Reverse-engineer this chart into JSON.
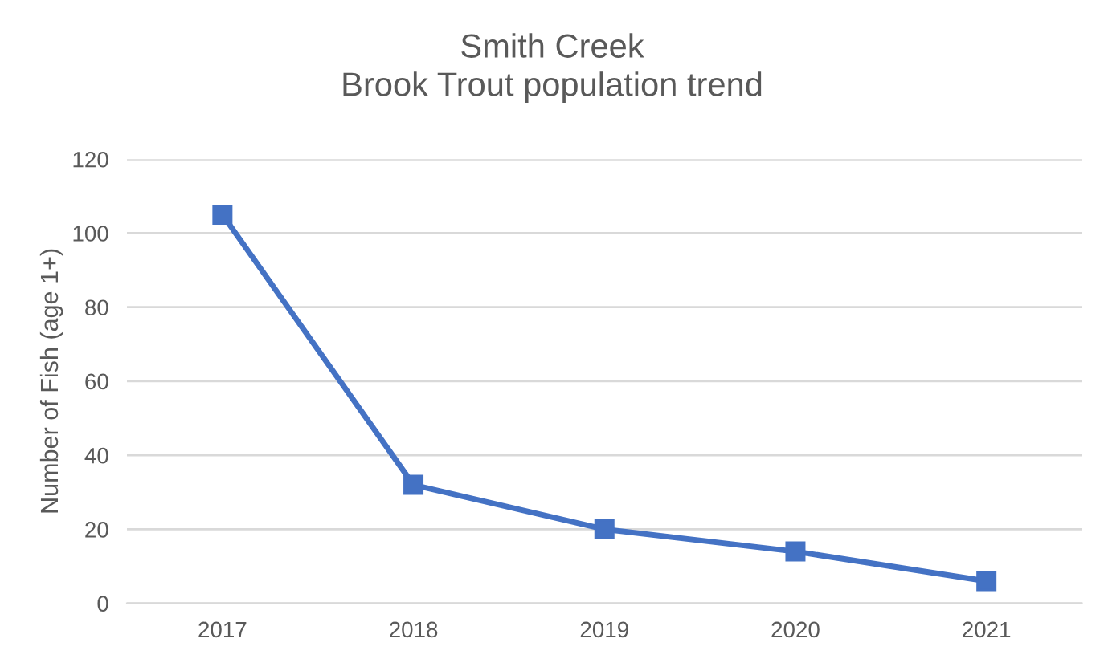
{
  "chart_data": {
    "type": "line",
    "title": "Smith Creek\nBrook Trout population trend",
    "ylabel": "Number of Fish (age 1+)",
    "categories": [
      "2017",
      "2018",
      "2019",
      "2020",
      "2021"
    ],
    "series": [
      {
        "color": "#4472c4",
        "values": [
          105,
          32,
          20,
          14,
          6
        ]
      }
    ],
    "ylim": [
      0,
      120
    ],
    "yticks": [
      0,
      20,
      40,
      60,
      80,
      100,
      120
    ],
    "grid": "y",
    "marker": "square",
    "line_style": "solid"
  }
}
